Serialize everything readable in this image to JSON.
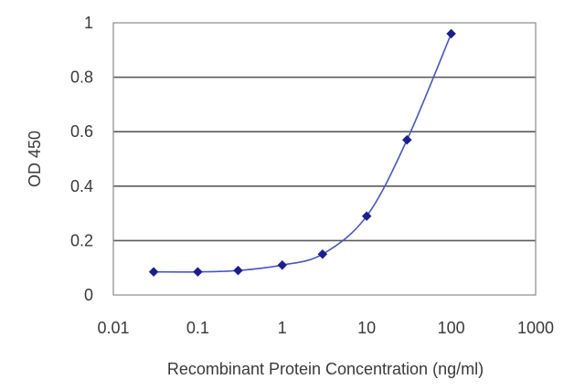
{
  "chart_data": {
    "type": "line",
    "title": "",
    "xlabel": "Recombinant Protein Concentration (ng/ml)",
    "ylabel": "OD 450",
    "x_scale": "log",
    "xlim": [
      0.01,
      1000
    ],
    "ylim": [
      0,
      1
    ],
    "x_ticks": [
      "0.01",
      "0.1",
      "1",
      "10",
      "100",
      "1000"
    ],
    "x_tick_values": [
      0.01,
      0.1,
      1,
      10,
      100,
      1000
    ],
    "y_ticks": [
      "0",
      "0.2",
      "0.4",
      "0.6",
      "0.8",
      "1"
    ],
    "y_tick_values": [
      0,
      0.2,
      0.4,
      0.6,
      0.8,
      1
    ],
    "grid": "horizontal",
    "legend": "none",
    "series": [
      {
        "x": [
          0.03,
          0.1,
          0.3,
          1,
          3,
          10,
          30,
          100
        ],
        "y": [
          0.085,
          0.085,
          0.09,
          0.11,
          0.15,
          0.29,
          0.57,
          0.96
        ]
      }
    ],
    "colors": {
      "series": "#1a1f8c",
      "curve": "#4a57b8",
      "grid": "#5a5a5a",
      "axis": "#8a8a8a",
      "text": "#3a3a3a"
    }
  }
}
